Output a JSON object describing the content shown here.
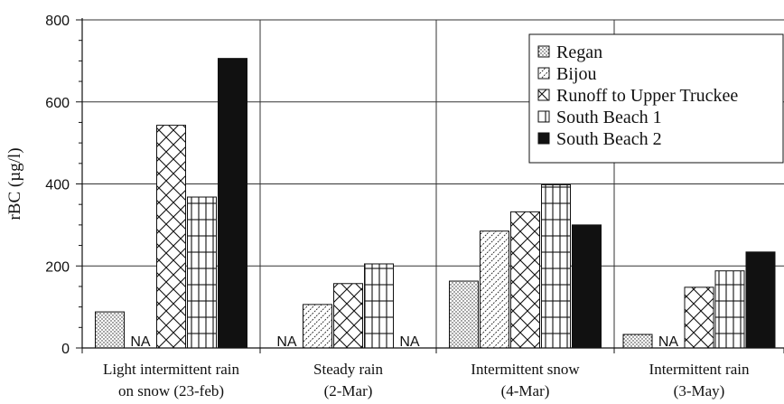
{
  "chart_data": {
    "type": "bar",
    "title": "",
    "xlabel": "",
    "ylabel": "rBC (µg/l)",
    "ylim": [
      0,
      800
    ],
    "yticks": [
      0,
      200,
      400,
      600,
      800
    ],
    "grid": true,
    "legend_position": "top-right",
    "categories": [
      [
        "Light intermittent rain",
        "on snow (23-feb)"
      ],
      [
        "Steady rain",
        "(2-Mar)"
      ],
      [
        "Intermittent snow",
        "(4-Mar)"
      ],
      [
        "Intermittent rain",
        "(3-May)"
      ]
    ],
    "series": [
      {
        "name": "Regan",
        "pattern": "dots",
        "values": [
          88,
          null,
          163,
          33
        ]
      },
      {
        "name": "Bijou",
        "pattern": "hatch",
        "values": [
          null,
          106,
          285,
          null
        ]
      },
      {
        "name": "Runoff to Upper Truckee",
        "pattern": "cross",
        "values": [
          543,
          157,
          332,
          148
        ]
      },
      {
        "name": "South Beach 1",
        "pattern": "grid",
        "values": [
          368,
          205,
          398,
          188
        ]
      },
      {
        "name": "South Beach 2",
        "pattern": "solid",
        "values": [
          706,
          null,
          300,
          234
        ]
      }
    ],
    "annotations": [
      {
        "text": "NA",
        "category": 0,
        "series": 1
      },
      {
        "text": "NA",
        "category": 1,
        "series": 0
      },
      {
        "text": "NA",
        "category": 1,
        "series": 4
      },
      {
        "text": "NA",
        "category": 3,
        "series": 1
      }
    ],
    "colors": {
      "bar_fill": "#ffffff",
      "solid_fill": "#111111",
      "stroke": "#111111",
      "grid": "#333333"
    }
  }
}
